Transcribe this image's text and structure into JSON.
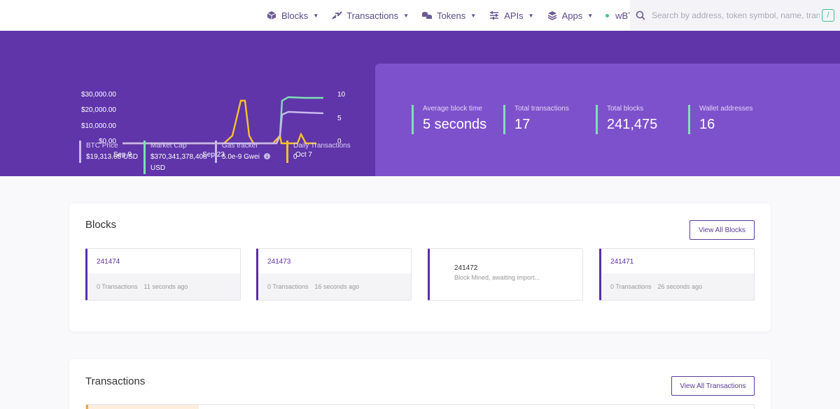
{
  "header": {
    "nav": [
      {
        "label": "Blocks",
        "icon": "cube-icon"
      },
      {
        "label": "Transactions",
        "icon": "transactions-icon"
      },
      {
        "label": "Tokens",
        "icon": "coins-icon"
      },
      {
        "label": "APIs",
        "icon": "sliders-icon"
      },
      {
        "label": "Apps",
        "icon": "layers-icon"
      }
    ],
    "network": "wBTC",
    "search_placeholder": "Search by address, token symbol, name, transaction hash, or block number",
    "search_key": "/"
  },
  "hero": {
    "chart": {
      "y_left_ticks": [
        "$30,000.00",
        "$20,000.00",
        "$10,000.00",
        "$0.00"
      ],
      "y_right_ticks": [
        "10",
        "5",
        "0"
      ],
      "x_ticks": [
        "Sep 9",
        "Sep 23",
        "Oct 7"
      ]
    },
    "mini_stats": [
      {
        "label": "BTC Price",
        "value": "$19,313.68 USD",
        "color": "#c9b8ec"
      },
      {
        "label": "Market Cap",
        "value": "$370,341,378,408",
        "value2": "USD",
        "color": "#7fe0b4"
      },
      {
        "label": "Gas tracker",
        "value": "5.0e-9 Gwei",
        "color": "#c9b8ec"
      },
      {
        "label": "Daily Transactions",
        "value": "0",
        "color": "#f8c12b"
      }
    ],
    "stats": [
      {
        "label": "Average block time",
        "value": "5 seconds"
      },
      {
        "label": "Total transactions",
        "value": "17"
      },
      {
        "label": "Total blocks",
        "value": "241,475"
      },
      {
        "label": "Wallet addresses",
        "value": "16"
      }
    ]
  },
  "blocks_section": {
    "title": "Blocks",
    "view_all": "View All Blocks",
    "blocks": [
      {
        "number": "241474",
        "txs": "0 Transactions",
        "age": "11 seconds ago"
      },
      {
        "number": "241473",
        "txs": "0 Transactions",
        "age": "16 seconds ago"
      },
      {
        "number": "241472",
        "status": "Block Mined, awaiting import..."
      },
      {
        "number": "241471",
        "txs": "0 Transactions",
        "age": "26 seconds ago"
      }
    ]
  },
  "transactions_section": {
    "title": "Transactions",
    "view_all": "View All Transactions"
  },
  "colors": {
    "hero_bg": "#5f35a9",
    "stats_panel_bg": "#7e51cc",
    "accent_green": "#7fe0b4",
    "accent_yellow": "#f8c12b",
    "accent_lavender": "#c9b8ec",
    "brand_purple": "#5b2ea6"
  }
}
